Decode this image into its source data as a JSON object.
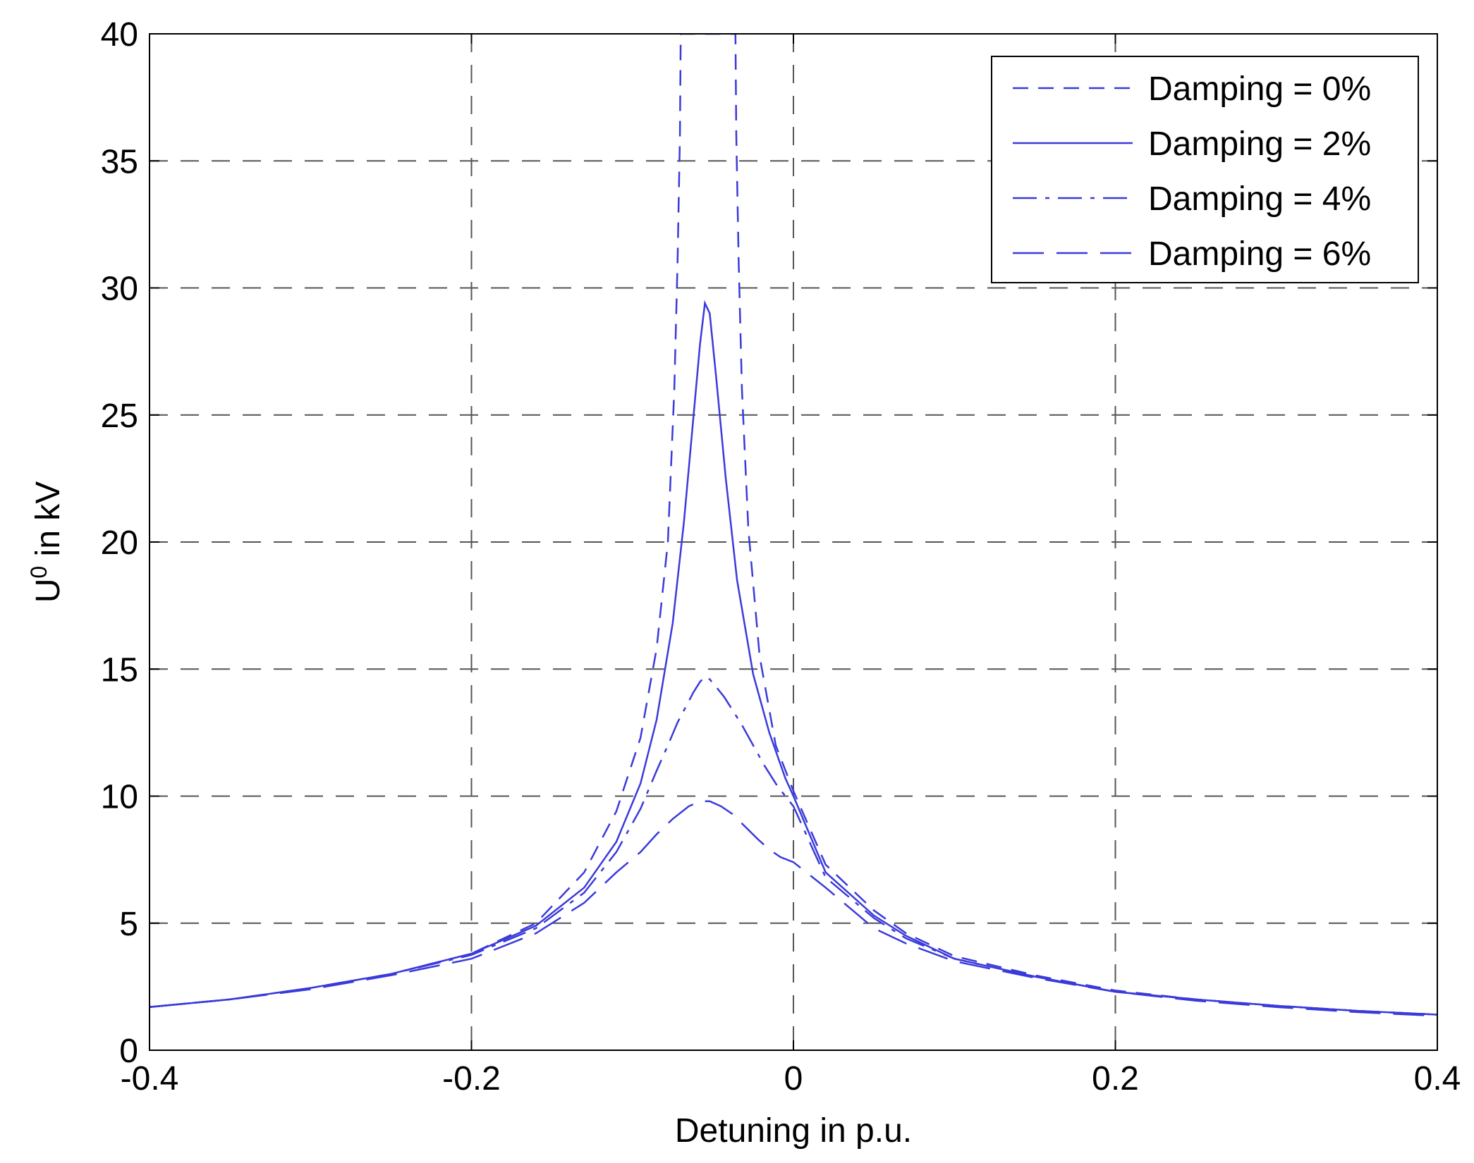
{
  "chart_data": {
    "type": "line",
    "xlabel": "Detuning in p.u.",
    "ylabel_main": "U",
    "ylabel_sup": "0",
    "ylabel_rest": " in kV",
    "xlim": [
      -0.4,
      0.4
    ],
    "ylim": [
      0,
      40
    ],
    "xticks": [
      -0.4,
      -0.2,
      0,
      0.2,
      0.4
    ],
    "xtick_labels": [
      "-0.4",
      "-0.2",
      "0",
      "0.2",
      "0.4"
    ],
    "yticks": [
      0,
      5,
      10,
      15,
      20,
      25,
      30,
      35,
      40
    ],
    "ytick_labels": [
      "0",
      "5",
      "10",
      "15",
      "20",
      "25",
      "30",
      "35",
      "40"
    ],
    "grid": true,
    "legend_position": "top-right",
    "line_color": "#3a3adb",
    "series": [
      {
        "name": "Damping = 0%",
        "style": "dashed",
        "x": [
          -0.4,
          -0.35,
          -0.3,
          -0.25,
          -0.2,
          -0.16,
          -0.13,
          -0.11,
          -0.095,
          -0.085,
          -0.078,
          -0.074,
          -0.072,
          -0.0705,
          -0.07,
          -0.036,
          -0.0355,
          -0.034,
          -0.032,
          -0.028,
          -0.021,
          -0.011,
          0.0,
          0.02,
          0.05,
          0.07,
          0.1,
          0.15,
          0.2,
          0.25,
          0.3,
          0.35,
          0.4
        ],
        "y": [
          1.7,
          2.0,
          2.45,
          3.0,
          3.8,
          5.0,
          7.0,
          9.4,
          12.3,
          15.8,
          20.0,
          26.0,
          31.0,
          36.0,
          40.0,
          40.0,
          36.0,
          31.0,
          26.0,
          20.5,
          15.5,
          12.0,
          10.2,
          7.3,
          5.5,
          4.6,
          3.7,
          2.95,
          2.35,
          2.0,
          1.75,
          1.55,
          1.4
        ]
      },
      {
        "name": "Damping = 2%",
        "style": "solid",
        "x": [
          -0.4,
          -0.35,
          -0.3,
          -0.25,
          -0.2,
          -0.16,
          -0.13,
          -0.11,
          -0.095,
          -0.085,
          -0.075,
          -0.068,
          -0.062,
          -0.058,
          -0.055,
          -0.052,
          -0.048,
          -0.042,
          -0.035,
          -0.025,
          -0.015,
          -0.005,
          0.0,
          0.02,
          0.05,
          0.07,
          0.1,
          0.15,
          0.2,
          0.25,
          0.3,
          0.35,
          0.4
        ],
        "y": [
          1.7,
          2.0,
          2.45,
          3.0,
          3.8,
          4.9,
          6.4,
          8.2,
          10.5,
          13.0,
          16.8,
          20.8,
          25.0,
          27.8,
          29.4,
          29.0,
          26.5,
          22.5,
          18.5,
          14.8,
          12.5,
          10.7,
          10.0,
          7.0,
          5.3,
          4.5,
          3.6,
          2.9,
          2.3,
          2.0,
          1.75,
          1.55,
          1.4
        ]
      },
      {
        "name": "Damping = 4%",
        "style": "dashdot",
        "x": [
          -0.4,
          -0.35,
          -0.3,
          -0.25,
          -0.2,
          -0.16,
          -0.13,
          -0.11,
          -0.095,
          -0.085,
          -0.078,
          -0.072,
          -0.067,
          -0.062,
          -0.058,
          -0.055,
          -0.052,
          -0.048,
          -0.043,
          -0.038,
          -0.032,
          -0.025,
          -0.018,
          -0.01,
          0.0,
          0.02,
          0.05,
          0.07,
          0.1,
          0.15,
          0.2,
          0.25,
          0.3,
          0.35,
          0.4
        ],
        "y": [
          1.7,
          2.0,
          2.45,
          3.0,
          3.75,
          4.8,
          6.2,
          7.8,
          9.5,
          11.0,
          12.0,
          12.9,
          13.5,
          14.1,
          14.5,
          14.7,
          14.6,
          14.3,
          13.9,
          13.4,
          12.8,
          12.0,
          11.2,
          10.4,
          9.6,
          6.8,
          5.2,
          4.4,
          3.6,
          2.9,
          2.3,
          2.0,
          1.75,
          1.55,
          1.4
        ]
      },
      {
        "name": "Damping = 6%",
        "style": "longdash",
        "x": [
          -0.4,
          -0.35,
          -0.3,
          -0.25,
          -0.2,
          -0.16,
          -0.13,
          -0.11,
          -0.095,
          -0.085,
          -0.075,
          -0.065,
          -0.058,
          -0.052,
          -0.045,
          -0.038,
          -0.03,
          -0.022,
          -0.015,
          -0.008,
          0.0,
          0.02,
          0.05,
          0.07,
          0.1,
          0.15,
          0.2,
          0.25,
          0.3,
          0.35,
          0.4
        ],
        "y": [
          1.7,
          2.0,
          2.4,
          2.95,
          3.6,
          4.6,
          5.8,
          7.0,
          7.8,
          8.5,
          9.1,
          9.6,
          9.8,
          9.8,
          9.6,
          9.3,
          8.8,
          8.3,
          7.9,
          7.6,
          7.4,
          6.4,
          4.8,
          4.2,
          3.5,
          2.85,
          2.3,
          1.95,
          1.7,
          1.5,
          1.35
        ]
      }
    ]
  }
}
